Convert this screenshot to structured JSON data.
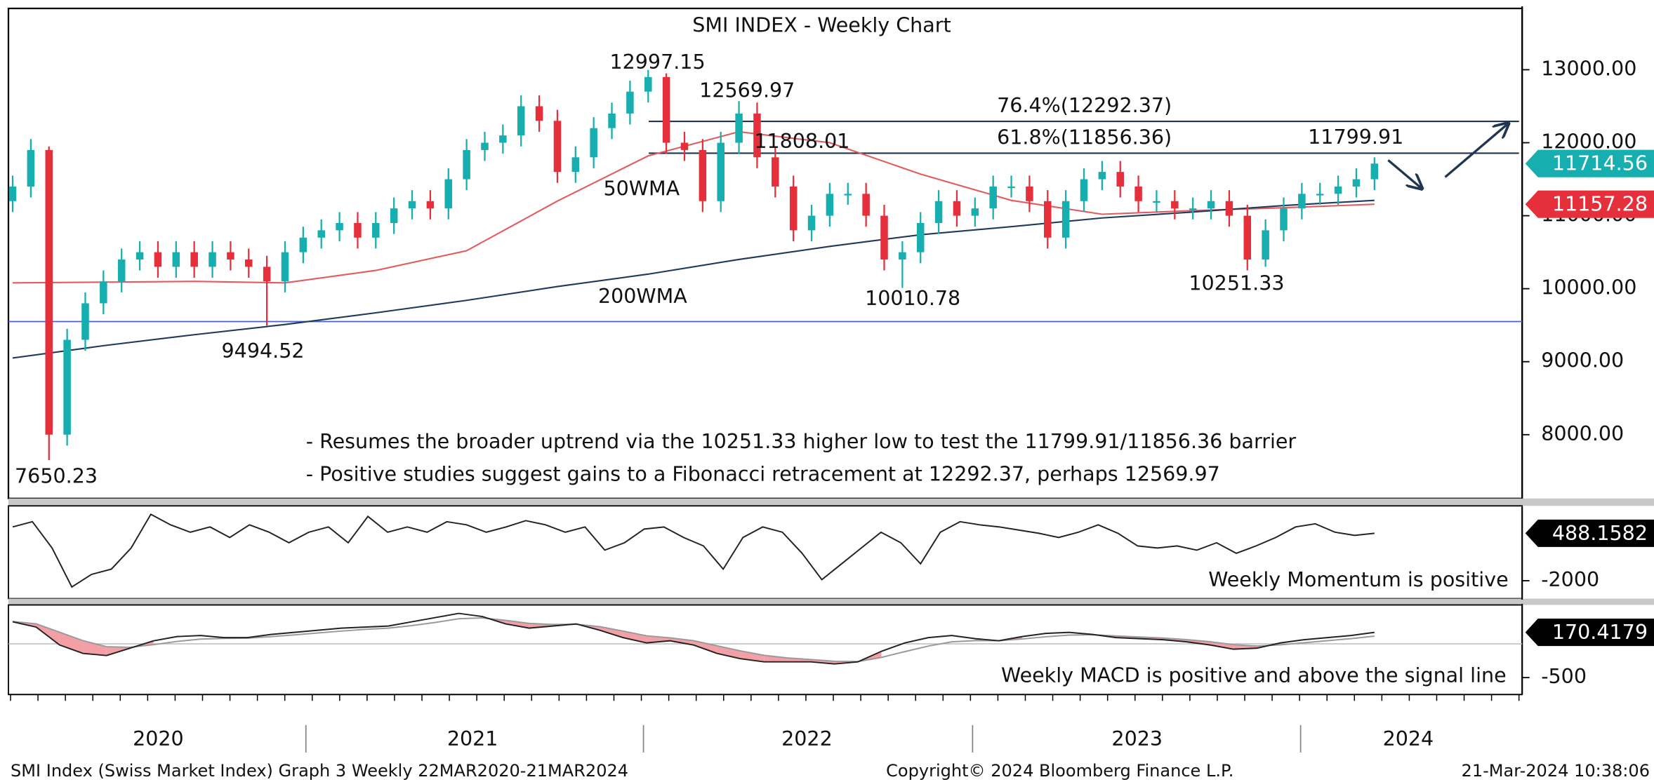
{
  "chart_data": [
    {
      "type": "candlestick",
      "title": "SMI INDEX - Weekly Chart",
      "up_color": "#17aeb0",
      "down_color": "#e5303c",
      "open": [
        11200,
        11400,
        11900,
        8000,
        9300,
        9800,
        10100,
        10400,
        10500,
        10300,
        10500,
        10300,
        10500,
        10400,
        10300,
        10100,
        10500,
        10700,
        10800,
        10900,
        10700,
        10900,
        11100,
        11200,
        11100,
        11500,
        11900,
        12000,
        12100,
        12500,
        12300,
        11600,
        11800,
        12200,
        12400,
        12700,
        12900,
        12000,
        11900,
        11200,
        12000,
        12400,
        11800,
        11400,
        10800,
        11000,
        11300,
        11300,
        11000,
        10400,
        10500,
        10900,
        11200,
        11000,
        11100,
        11400,
        11400,
        11200,
        10700,
        11200,
        11500,
        11600,
        11400,
        11200,
        11200,
        11100,
        11100,
        11200,
        11000,
        10400,
        10800,
        11100,
        11300,
        11300,
        11400,
        11500
      ],
      "high": [
        11550,
        12050,
        11950,
        9450,
        9950,
        10250,
        10550,
        10650,
        10650,
        10650,
        10650,
        10650,
        10650,
        10550,
        10450,
        10650,
        10850,
        10950,
        11050,
        11050,
        11050,
        11250,
        11350,
        11350,
        11650,
        12050,
        12150,
        12250,
        12650,
        12650,
        12450,
        11950,
        12350,
        12550,
        12850,
        12997.15,
        12950,
        12150,
        12050,
        12150,
        12569.97,
        12550,
        11950,
        11550,
        11150,
        11450,
        11450,
        11450,
        11150,
        10650,
        11050,
        11350,
        11350,
        11250,
        11550,
        11550,
        11550,
        11350,
        11350,
        11650,
        11750,
        11750,
        11550,
        11350,
        11350,
        11250,
        11350,
        11350,
        11150,
        10950,
        11250,
        11450,
        11450,
        11550,
        11650,
        11799.91
      ],
      "low": [
        11050,
        11250,
        7650.23,
        7850,
        9150,
        9650,
        9950,
        10250,
        10150,
        10150,
        10150,
        10150,
        10250,
        10150,
        9494.52,
        9950,
        10350,
        10550,
        10650,
        10550,
        10550,
        10750,
        10950,
        10950,
        10950,
        11350,
        11750,
        11850,
        11950,
        12150,
        11450,
        11450,
        11650,
        12050,
        12250,
        12550,
        11850,
        11750,
        11050,
        11050,
        11850,
        11650,
        11250,
        10650,
        10650,
        10850,
        11150,
        10850,
        10250,
        10010.78,
        10350,
        10750,
        10850,
        10850,
        10950,
        11250,
        11050,
        10550,
        10550,
        11050,
        11350,
        11250,
        11050,
        11050,
        10950,
        10950,
        10950,
        10850,
        10251.33,
        10300,
        10650,
        10950,
        11150,
        11150,
        11250,
        11350
      ],
      "close": [
        11400,
        11900,
        8000,
        9300,
        9800,
        10100,
        10400,
        10500,
        10300,
        10500,
        10300,
        10500,
        10400,
        10300,
        10100,
        10500,
        10700,
        10800,
        10900,
        10700,
        10900,
        11100,
        11200,
        11100,
        11500,
        11900,
        12000,
        12100,
        12500,
        12300,
        11600,
        11800,
        12200,
        12400,
        12700,
        12900,
        12000,
        11900,
        11200,
        12000,
        12400,
        11800,
        11400,
        10800,
        11000,
        11300,
        11300,
        11000,
        10400,
        10500,
        10900,
        11200,
        11000,
        11100,
        11400,
        11400,
        11200,
        10700,
        11200,
        11500,
        11600,
        11400,
        11200,
        11200,
        11100,
        11100,
        11200,
        11000,
        10400,
        10800,
        11100,
        11300,
        11300,
        11400,
        11500,
        11714.56
      ],
      "overlays": [
        {
          "name": "50WMA",
          "color": "#e25b5e",
          "values": [
            10080,
            10090,
            10100,
            10080,
            10250,
            10520,
            11200,
            11820,
            12150,
            12000,
            11570,
            11210,
            11020,
            11070,
            11110,
            11157.28
          ]
        },
        {
          "name": "200WMA",
          "color": "#1f3a5c",
          "values": [
            9050,
            9220,
            9370,
            9510,
            9670,
            9840,
            10030,
            10200,
            10400,
            10580,
            10740,
            10850,
            10970,
            11050,
            11140,
            11210
          ]
        }
      ],
      "levels": [
        {
          "label": "76.4%(12292.37)",
          "value": 12292.37
        },
        {
          "label": "61.8%(11856.36)",
          "value": 11856.36
        }
      ],
      "level_color": "#1f3550",
      "support_line": 9550,
      "support_color": "#4f5fd0",
      "annotations": [
        "12997.15",
        "12569.97",
        "11808.01",
        "11799.91",
        "9494.52",
        "10010.78",
        "10251.33",
        "7650.23"
      ],
      "notes": [
        "- Resumes the broader uptrend via the 10251.33 higher low to test the 11799.91/11856.36 barrier",
        "- Positive studies suggest gains to a Fibonacci retracement at 12292.37, perhaps 12569.97"
      ],
      "last_tags": [
        {
          "label": "11714.56",
          "value": 11714.56,
          "color": "#17aeb0"
        },
        {
          "label": "11157.28",
          "value": 11157.28,
          "color": "#e5303c"
        }
      ],
      "ylim": [
        7140,
        13840
      ],
      "yticks": [
        {
          "value": 8000,
          "label": "8000.00"
        },
        {
          "value": 9000,
          "label": "9000.00"
        },
        {
          "value": 10000,
          "label": "10000.00"
        },
        {
          "value": 11000,
          "label": "11000.00"
        },
        {
          "value": 12000,
          "label": "12000.00"
        },
        {
          "value": 13000,
          "label": "13000.00"
        }
      ]
    },
    {
      "type": "line",
      "note": "Weekly Momentum is positive",
      "color": "#222",
      "values": [
        820,
        1096,
        -286,
        -2332,
        -1669,
        -1392,
        -286,
        1483,
        930,
        543,
        820,
        267,
        930,
        543,
        -10,
        543,
        820,
        -10,
        1373,
        543,
        820,
        543,
        1096,
        930,
        543,
        820,
        1152,
        930,
        543,
        820,
        -397,
        -10,
        709,
        820,
        267,
        -176,
        -1392,
        267,
        820,
        543,
        -563,
        -1945,
        -1116,
        -286,
        543,
        -10,
        -1116,
        543,
        1096,
        930,
        820,
        654,
        488,
        267,
        543,
        930,
        488,
        -176,
        -286,
        -176,
        -397,
        -10,
        -563,
        -176,
        267,
        820,
        986,
        543,
        377,
        488.1582
      ],
      "last_tag": {
        "label": "488.1582",
        "value": 488.1582,
        "color": "#000"
      },
      "ylim": [
        -2940,
        1760
      ],
      "yticks": [
        -2000
      ]
    },
    {
      "type": "macd",
      "note": "Weekly MACD is positive and above the signal line",
      "series": [
        {
          "name": "MACD",
          "color": "#222",
          "values": [
            326,
            248,
            -17,
            -142,
            -173,
            -64,
            45,
            108,
            123,
            92,
            92,
            139,
            170,
            201,
            232,
            248,
            264,
            326,
            388,
            451,
            404,
            295,
            232,
            264,
            295,
            201,
            92,
            14,
            45,
            -17,
            -142,
            -220,
            -267,
            -267,
            -267,
            -298,
            -267,
            -111,
            14,
            92,
            123,
            76,
            45,
            108,
            154,
            170,
            139,
            92,
            76,
            61,
            30,
            -17,
            -80,
            -64,
            14,
            61,
            92,
            123,
            170.4179
          ]
        },
        {
          "name": "Signal",
          "color": "#9a9a9a",
          "values": [
            330,
            297,
            171,
            46,
            -42,
            -51,
            -13,
            35,
            70,
            79,
            84,
            106,
            132,
            160,
            189,
            213,
            233,
            270,
            317,
            371,
            384,
            348,
            302,
            287,
            290,
            254,
            189,
            119,
            89,
            47,
            -29,
            -105,
            -170,
            -209,
            -232,
            -258,
            -262,
            -202,
            -116,
            -33,
            29,
            48,
            47,
            71,
            104,
            130,
            134,
            117,
            101,
            85,
            63,
            31,
            -13,
            -33,
            -14,
            16,
            46,
            77,
            114
          ]
        }
      ],
      "fill_color": "#f2a0a6",
      "last_tag": {
        "label": "170.4179",
        "value": 170.4179,
        "color": "#000"
      },
      "ylim": [
        -735,
        560
      ],
      "yticks": [
        -500
      ]
    }
  ],
  "timeline": {
    "categories": [
      "2020",
      "2021",
      "2022",
      "2023",
      "2024"
    ]
  },
  "footer": {
    "left": "SMI Index (Swiss Market Index) Graph 3  Weekly 22MAR2020-21MAR2024",
    "center": "Copyright© 2024 Bloomberg Finance L.P.",
    "right": "21-Mar-2024 10:38:06"
  }
}
